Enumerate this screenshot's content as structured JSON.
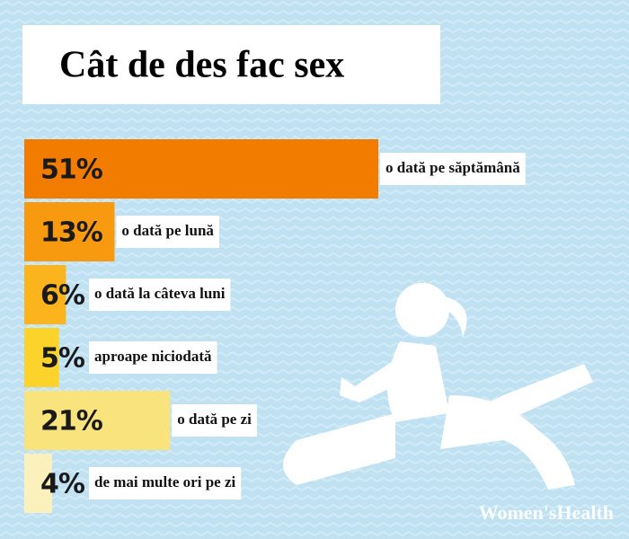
{
  "chart_data": {
    "type": "bar",
    "orientation": "horizontal",
    "title": "Cât de des fac sex",
    "categories": [
      "o dată pe săptămână",
      "o dată pe lună",
      "o dată la câteva luni",
      "aproape niciodată",
      "o dată pe zi",
      "de mai multe ori pe zi"
    ],
    "values": [
      51,
      13,
      6,
      5,
      21,
      4
    ],
    "value_labels": [
      "51%",
      "13%",
      "6%",
      "5%",
      "21%",
      "4%"
    ],
    "colors": [
      "#f27c00",
      "#f79a10",
      "#fbb41c",
      "#fbd32a",
      "#f8e37c",
      "#fbf1bc"
    ],
    "source": "Women'sHealth"
  }
}
